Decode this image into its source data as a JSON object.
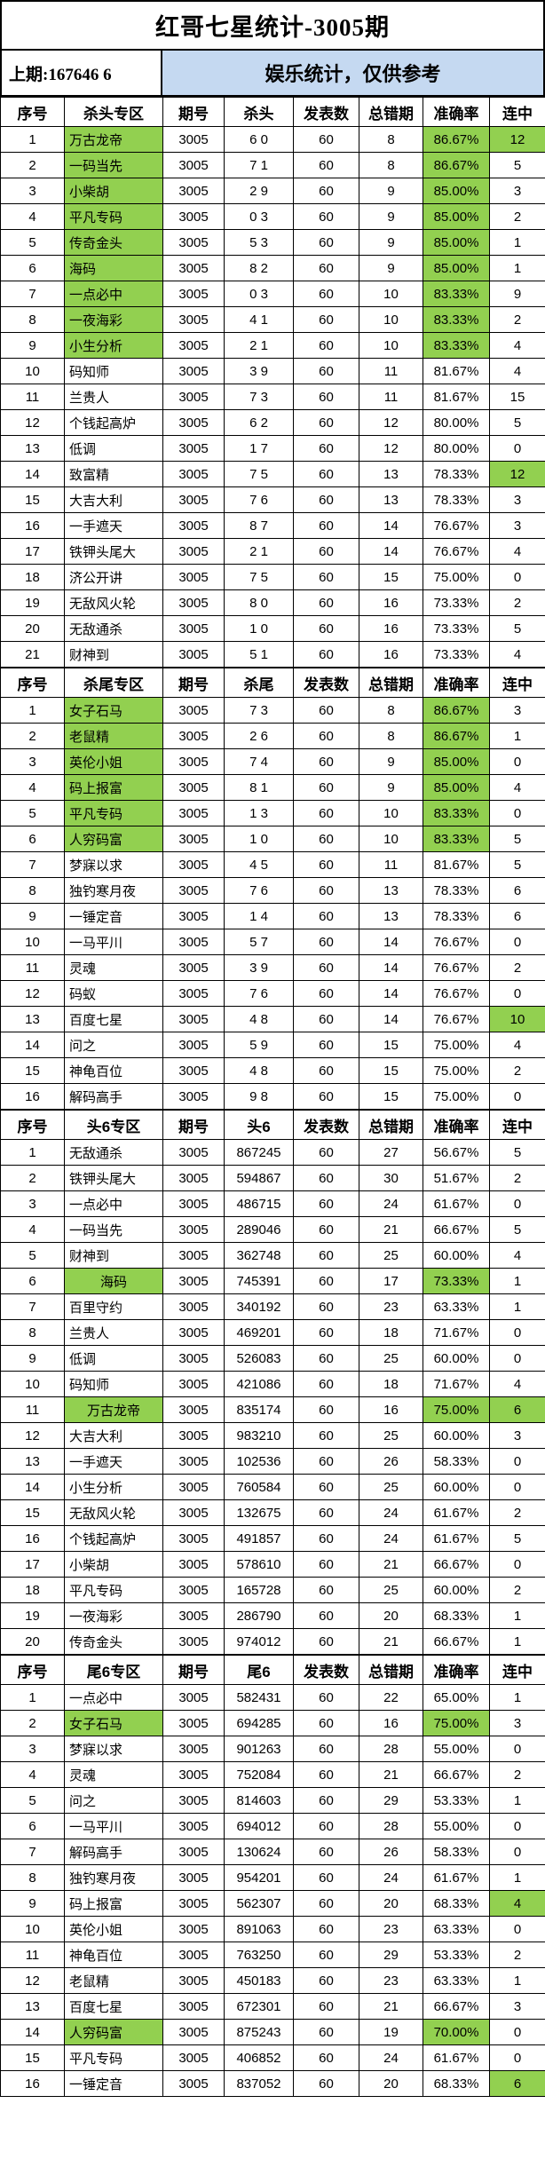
{
  "header": {
    "title": "红哥七星统计-3005期",
    "prev_issue": "上期:167646 6",
    "note": "娱乐统计，仅供参考"
  },
  "colors": {
    "highlight_green": "#92d050",
    "note_blue": "#c5d9f1"
  },
  "tables": [
    {
      "section": "杀头专区",
      "headers": [
        "序号",
        "杀头专区",
        "期号",
        "杀头",
        "发表数",
        "总错期",
        "准确率",
        "连中"
      ],
      "rows": [
        {
          "no": "1",
          "name": "万古龙帝",
          "issue": "3005",
          "value": "6 0",
          "published": "60",
          "wrong": "8",
          "accuracy": "86.67%",
          "streak": "12",
          "name_green": true,
          "acc_green": true,
          "streak_green": true
        },
        {
          "no": "2",
          "name": "一码当先",
          "issue": "3005",
          "value": "7 1",
          "published": "60",
          "wrong": "8",
          "accuracy": "86.67%",
          "streak": "5",
          "name_green": true,
          "acc_green": true
        },
        {
          "no": "3",
          "name": "小柴胡",
          "issue": "3005",
          "value": "2 9",
          "published": "60",
          "wrong": "9",
          "accuracy": "85.00%",
          "streak": "3",
          "name_green": true,
          "acc_green": true
        },
        {
          "no": "4",
          "name": "平凡专码",
          "issue": "3005",
          "value": "0 3",
          "published": "60",
          "wrong": "9",
          "accuracy": "85.00%",
          "streak": "2",
          "name_green": true,
          "acc_green": true
        },
        {
          "no": "5",
          "name": "传奇金头",
          "issue": "3005",
          "value": "5 3",
          "published": "60",
          "wrong": "9",
          "accuracy": "85.00%",
          "streak": "1",
          "name_green": true,
          "acc_green": true
        },
        {
          "no": "6",
          "name": "海码",
          "issue": "3005",
          "value": "8 2",
          "published": "60",
          "wrong": "9",
          "accuracy": "85.00%",
          "streak": "1",
          "name_green": true,
          "acc_green": true
        },
        {
          "no": "7",
          "name": "一点必中",
          "issue": "3005",
          "value": "0 3",
          "published": "60",
          "wrong": "10",
          "accuracy": "83.33%",
          "streak": "9",
          "name_green": true,
          "acc_green": true
        },
        {
          "no": "8",
          "name": "一夜海彩",
          "issue": "3005",
          "value": "4 1",
          "published": "60",
          "wrong": "10",
          "accuracy": "83.33%",
          "streak": "2",
          "name_green": true,
          "acc_green": true
        },
        {
          "no": "9",
          "name": "小生分析",
          "issue": "3005",
          "value": "2 1",
          "published": "60",
          "wrong": "10",
          "accuracy": "83.33%",
          "streak": "4",
          "name_green": true,
          "acc_green": true
        },
        {
          "no": "10",
          "name": "码知师",
          "issue": "3005",
          "value": "3 9",
          "published": "60",
          "wrong": "11",
          "accuracy": "81.67%",
          "streak": "4"
        },
        {
          "no": "11",
          "name": "兰贵人",
          "issue": "3005",
          "value": "7 3",
          "published": "60",
          "wrong": "11",
          "accuracy": "81.67%",
          "streak": "15"
        },
        {
          "no": "12",
          "name": "个钱起高炉",
          "issue": "3005",
          "value": "6 2",
          "published": "60",
          "wrong": "12",
          "accuracy": "80.00%",
          "streak": "5"
        },
        {
          "no": "13",
          "name": "低调",
          "issue": "3005",
          "value": "1 7",
          "published": "60",
          "wrong": "12",
          "accuracy": "80.00%",
          "streak": "0"
        },
        {
          "no": "14",
          "name": "致富精",
          "issue": "3005",
          "value": "7 5",
          "published": "60",
          "wrong": "13",
          "accuracy": "78.33%",
          "streak": "12",
          "streak_green": true
        },
        {
          "no": "15",
          "name": "大吉大利",
          "issue": "3005",
          "value": "7 6",
          "published": "60",
          "wrong": "13",
          "accuracy": "78.33%",
          "streak": "3"
        },
        {
          "no": "16",
          "name": "一手遮天",
          "issue": "3005",
          "value": "8 7",
          "published": "60",
          "wrong": "14",
          "accuracy": "76.67%",
          "streak": "3"
        },
        {
          "no": "17",
          "name": "铁钾头尾大",
          "issue": "3005",
          "value": "2 1",
          "published": "60",
          "wrong": "14",
          "accuracy": "76.67%",
          "streak": "4"
        },
        {
          "no": "18",
          "name": "济公开讲",
          "issue": "3005",
          "value": "7 5",
          "published": "60",
          "wrong": "15",
          "accuracy": "75.00%",
          "streak": "0"
        },
        {
          "no": "19",
          "name": "无敌风火轮",
          "issue": "3005",
          "value": "8 0",
          "published": "60",
          "wrong": "16",
          "accuracy": "73.33%",
          "streak": "2"
        },
        {
          "no": "20",
          "name": "无敌通杀",
          "issue": "3005",
          "value": "1 0",
          "published": "60",
          "wrong": "16",
          "accuracy": "73.33%",
          "streak": "5"
        },
        {
          "no": "21",
          "name": "财神到",
          "issue": "3005",
          "value": "5 1",
          "published": "60",
          "wrong": "16",
          "accuracy": "73.33%",
          "streak": "4"
        }
      ]
    },
    {
      "section": "杀尾专区",
      "headers": [
        "序号",
        "杀尾专区",
        "期号",
        "杀尾",
        "发表数",
        "总错期",
        "准确率",
        "连中"
      ],
      "rows": [
        {
          "no": "1",
          "name": "女子石马",
          "issue": "3005",
          "value": "7 3",
          "published": "60",
          "wrong": "8",
          "accuracy": "86.67%",
          "streak": "3",
          "name_green": true,
          "acc_green": true
        },
        {
          "no": "2",
          "name": "老鼠精",
          "issue": "3005",
          "value": "2 6",
          "published": "60",
          "wrong": "8",
          "accuracy": "86.67%",
          "streak": "1",
          "name_green": true,
          "acc_green": true
        },
        {
          "no": "3",
          "name": "英伦小姐",
          "issue": "3005",
          "value": "7 4",
          "published": "60",
          "wrong": "9",
          "accuracy": "85.00%",
          "streak": "0",
          "name_green": true,
          "acc_green": true
        },
        {
          "no": "4",
          "name": "码上报富",
          "issue": "3005",
          "value": "8 1",
          "published": "60",
          "wrong": "9",
          "accuracy": "85.00%",
          "streak": "4",
          "name_green": true,
          "acc_green": true
        },
        {
          "no": "5",
          "name": "平凡专码",
          "issue": "3005",
          "value": "1 3",
          "published": "60",
          "wrong": "10",
          "accuracy": "83.33%",
          "streak": "0",
          "name_green": true,
          "acc_green": true
        },
        {
          "no": "6",
          "name": "人穷码富",
          "issue": "3005",
          "value": "1 0",
          "published": "60",
          "wrong": "10",
          "accuracy": "83.33%",
          "streak": "5",
          "name_green": true,
          "acc_green": true
        },
        {
          "no": "7",
          "name": "梦寐以求",
          "issue": "3005",
          "value": "4 5",
          "published": "60",
          "wrong": "11",
          "accuracy": "81.67%",
          "streak": "5"
        },
        {
          "no": "8",
          "name": "独钓寒月夜",
          "issue": "3005",
          "value": "7 6",
          "published": "60",
          "wrong": "13",
          "accuracy": "78.33%",
          "streak": "6"
        },
        {
          "no": "9",
          "name": "一锤定音",
          "issue": "3005",
          "value": "1 4",
          "published": "60",
          "wrong": "13",
          "accuracy": "78.33%",
          "streak": "6"
        },
        {
          "no": "10",
          "name": "一马平川",
          "issue": "3005",
          "value": "5 7",
          "published": "60",
          "wrong": "14",
          "accuracy": "76.67%",
          "streak": "0"
        },
        {
          "no": "11",
          "name": "灵魂",
          "issue": "3005",
          "value": "3 9",
          "published": "60",
          "wrong": "14",
          "accuracy": "76.67%",
          "streak": "2"
        },
        {
          "no": "12",
          "name": "码蚁",
          "issue": "3005",
          "value": "7 6",
          "published": "60",
          "wrong": "14",
          "accuracy": "76.67%",
          "streak": "0"
        },
        {
          "no": "13",
          "name": "百度七星",
          "issue": "3005",
          "value": "4 8",
          "published": "60",
          "wrong": "14",
          "accuracy": "76.67%",
          "streak": "10",
          "streak_green": true
        },
        {
          "no": "14",
          "name": "问之",
          "issue": "3005",
          "value": "5 9",
          "published": "60",
          "wrong": "15",
          "accuracy": "75.00%",
          "streak": "4"
        },
        {
          "no": "15",
          "name": "神龟百位",
          "issue": "3005",
          "value": "4 8",
          "published": "60",
          "wrong": "15",
          "accuracy": "75.00%",
          "streak": "2"
        },
        {
          "no": "16",
          "name": "解码高手",
          "issue": "3005",
          "value": "9 8",
          "published": "60",
          "wrong": "15",
          "accuracy": "75.00%",
          "streak": "0"
        }
      ]
    },
    {
      "section": "头6专区",
      "headers": [
        "序号",
        "头6专区",
        "期号",
        "头6",
        "发表数",
        "总错期",
        "准确率",
        "连中"
      ],
      "rows": [
        {
          "no": "1",
          "name": "无敌通杀",
          "issue": "3005",
          "value": "867245",
          "published": "60",
          "wrong": "27",
          "accuracy": "56.67%",
          "streak": "5"
        },
        {
          "no": "2",
          "name": "铁钾头尾大",
          "issue": "3005",
          "value": "594867",
          "published": "60",
          "wrong": "30",
          "accuracy": "51.67%",
          "streak": "2"
        },
        {
          "no": "3",
          "name": "一点必中",
          "issue": "3005",
          "value": "486715",
          "published": "60",
          "wrong": "24",
          "accuracy": "61.67%",
          "streak": "0"
        },
        {
          "no": "4",
          "name": "一码当先",
          "issue": "3005",
          "value": "289046",
          "published": "60",
          "wrong": "21",
          "accuracy": "66.67%",
          "streak": "5"
        },
        {
          "no": "5",
          "name": "财神到",
          "issue": "3005",
          "value": "362748",
          "published": "60",
          "wrong": "25",
          "accuracy": "60.00%",
          "streak": "4"
        },
        {
          "no": "6",
          "name": "海码",
          "issue": "3005",
          "value": "745391",
          "published": "60",
          "wrong": "17",
          "accuracy": "73.33%",
          "streak": "1",
          "name_green": true,
          "acc_green": true,
          "name_center": true
        },
        {
          "no": "7",
          "name": "百里守约",
          "issue": "3005",
          "value": "340192",
          "published": "60",
          "wrong": "23",
          "accuracy": "63.33%",
          "streak": "1"
        },
        {
          "no": "8",
          "name": "兰贵人",
          "issue": "3005",
          "value": "469201",
          "published": "60",
          "wrong": "18",
          "accuracy": "71.67%",
          "streak": "0"
        },
        {
          "no": "9",
          "name": "低调",
          "issue": "3005",
          "value": "526083",
          "published": "60",
          "wrong": "25",
          "accuracy": "60.00%",
          "streak": "0"
        },
        {
          "no": "10",
          "name": "码知师",
          "issue": "3005",
          "value": "421086",
          "published": "60",
          "wrong": "18",
          "accuracy": "71.67%",
          "streak": "4"
        },
        {
          "no": "11",
          "name": "万古龙帝",
          "issue": "3005",
          "value": "835174",
          "published": "60",
          "wrong": "16",
          "accuracy": "75.00%",
          "streak": "6",
          "name_green": true,
          "acc_green": true,
          "streak_green": true,
          "name_center": true
        },
        {
          "no": "12",
          "name": "大吉大利",
          "issue": "3005",
          "value": "983210",
          "published": "60",
          "wrong": "25",
          "accuracy": "60.00%",
          "streak": "3"
        },
        {
          "no": "13",
          "name": "一手遮天",
          "issue": "3005",
          "value": "102536",
          "published": "60",
          "wrong": "26",
          "accuracy": "58.33%",
          "streak": "0"
        },
        {
          "no": "14",
          "name": "小生分析",
          "issue": "3005",
          "value": "760584",
          "published": "60",
          "wrong": "25",
          "accuracy": "60.00%",
          "streak": "0"
        },
        {
          "no": "15",
          "name": "无敌风火轮",
          "issue": "3005",
          "value": "132675",
          "published": "60",
          "wrong": "24",
          "accuracy": "61.67%",
          "streak": "2"
        },
        {
          "no": "16",
          "name": "个钱起高炉",
          "issue": "3005",
          "value": "491857",
          "published": "60",
          "wrong": "24",
          "accuracy": "61.67%",
          "streak": "5"
        },
        {
          "no": "17",
          "name": "小柴胡",
          "issue": "3005",
          "value": "578610",
          "published": "60",
          "wrong": "21",
          "accuracy": "66.67%",
          "streak": "0"
        },
        {
          "no": "18",
          "name": "平凡专码",
          "issue": "3005",
          "value": "165728",
          "published": "60",
          "wrong": "25",
          "accuracy": "60.00%",
          "streak": "2"
        },
        {
          "no": "19",
          "name": "一夜海彩",
          "issue": "3005",
          "value": "286790",
          "published": "60",
          "wrong": "20",
          "accuracy": "68.33%",
          "streak": "1"
        },
        {
          "no": "20",
          "name": "传奇金头",
          "issue": "3005",
          "value": "974012",
          "published": "60",
          "wrong": "21",
          "accuracy": "66.67%",
          "streak": "1"
        }
      ]
    },
    {
      "section": "尾6专区",
      "headers": [
        "序号",
        "尾6专区",
        "期号",
        "尾6",
        "发表数",
        "总错期",
        "准确率",
        "连中"
      ],
      "rows": [
        {
          "no": "1",
          "name": "一点必中",
          "issue": "3005",
          "value": "582431",
          "published": "60",
          "wrong": "22",
          "accuracy": "65.00%",
          "streak": "1"
        },
        {
          "no": "2",
          "name": "女子石马",
          "issue": "3005",
          "value": "694285",
          "published": "60",
          "wrong": "16",
          "accuracy": "75.00%",
          "streak": "3",
          "name_green": true,
          "acc_green": true
        },
        {
          "no": "3",
          "name": "梦寐以求",
          "issue": "3005",
          "value": "901263",
          "published": "60",
          "wrong": "28",
          "accuracy": "55.00%",
          "streak": "0"
        },
        {
          "no": "4",
          "name": "灵魂",
          "issue": "3005",
          "value": "752084",
          "published": "60",
          "wrong": "21",
          "accuracy": "66.67%",
          "streak": "2"
        },
        {
          "no": "5",
          "name": "问之",
          "issue": "3005",
          "value": "814603",
          "published": "60",
          "wrong": "29",
          "accuracy": "53.33%",
          "streak": "1"
        },
        {
          "no": "6",
          "name": "一马平川",
          "issue": "3005",
          "value": "694012",
          "published": "60",
          "wrong": "28",
          "accuracy": "55.00%",
          "streak": "0"
        },
        {
          "no": "7",
          "name": "解码高手",
          "issue": "3005",
          "value": "130624",
          "published": "60",
          "wrong": "26",
          "accuracy": "58.33%",
          "streak": "0"
        },
        {
          "no": "8",
          "name": "独钓寒月夜",
          "issue": "3005",
          "value": "954201",
          "published": "60",
          "wrong": "24",
          "accuracy": "61.67%",
          "streak": "1"
        },
        {
          "no": "9",
          "name": "码上报富",
          "issue": "3005",
          "value": "562307",
          "published": "60",
          "wrong": "20",
          "accuracy": "68.33%",
          "streak": "4",
          "streak_green": true
        },
        {
          "no": "10",
          "name": "英伦小姐",
          "issue": "3005",
          "value": "891063",
          "published": "60",
          "wrong": "23",
          "accuracy": "63.33%",
          "streak": "0"
        },
        {
          "no": "11",
          "name": "神龟百位",
          "issue": "3005",
          "value": "763250",
          "published": "60",
          "wrong": "29",
          "accuracy": "53.33%",
          "streak": "2"
        },
        {
          "no": "12",
          "name": "老鼠精",
          "issue": "3005",
          "value": "450183",
          "published": "60",
          "wrong": "23",
          "accuracy": "63.33%",
          "streak": "1"
        },
        {
          "no": "13",
          "name": "百度七星",
          "issue": "3005",
          "value": "672301",
          "published": "60",
          "wrong": "21",
          "accuracy": "66.67%",
          "streak": "3"
        },
        {
          "no": "14",
          "name": "人穷码富",
          "issue": "3005",
          "value": "875243",
          "published": "60",
          "wrong": "19",
          "accuracy": "70.00%",
          "streak": "0",
          "name_green": true,
          "acc_green": true
        },
        {
          "no": "15",
          "name": "平凡专码",
          "issue": "3005",
          "value": "406852",
          "published": "60",
          "wrong": "24",
          "accuracy": "61.67%",
          "streak": "0"
        },
        {
          "no": "16",
          "name": "一锤定音",
          "issue": "3005",
          "value": "837052",
          "published": "60",
          "wrong": "20",
          "accuracy": "68.33%",
          "streak": "6",
          "streak_green": true
        }
      ]
    }
  ]
}
